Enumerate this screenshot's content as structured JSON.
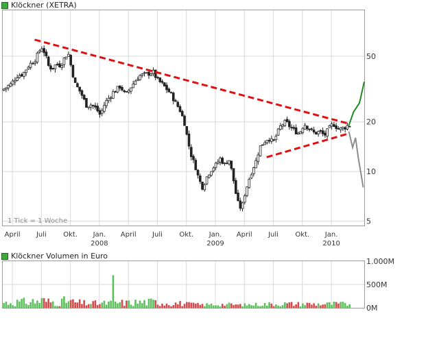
{
  "colors": {
    "up_candle": "#ffffff",
    "down_candle": "#222222",
    "trend_line": "#e01010",
    "scenario_up": "#1f8a1f",
    "scenario_down": "#8c8c8c",
    "volume_up": "#5cbf5c",
    "volume_down": "#d24a4a",
    "grid": "#d8d8d8",
    "legend_swatch": "#3fa83f"
  },
  "price_chart": {
    "legend": "Klöckner (XETRA)",
    "tick_note": "1 Tick = 1 Woche"
  },
  "volume_chart": {
    "legend": "Klöckner Volumen in Euro"
  },
  "chart_data": [
    {
      "type": "line",
      "title": "Klöckner (XETRA)",
      "scale": "log",
      "ylim": [
        4.7,
        95
      ],
      "grid": true,
      "y_ticks": [
        {
          "value": 50,
          "label": "50"
        },
        {
          "value": 20,
          "label": "20"
        },
        {
          "value": 10,
          "label": "10"
        },
        {
          "value": 5,
          "label": "5"
        }
      ],
      "x_ticks": [
        {
          "t": 0.0,
          "label": "April"
        },
        {
          "t": 3.0,
          "label": "Juli"
        },
        {
          "t": 6.0,
          "label": "Okt."
        },
        {
          "t": 9.0,
          "label": "Jan."
        },
        {
          "t": 12.0,
          "label": "April"
        },
        {
          "t": 15.0,
          "label": "Juli"
        },
        {
          "t": 18.0,
          "label": "Okt."
        },
        {
          "t": 21.0,
          "label": "Jan."
        },
        {
          "t": 24.0,
          "label": "April"
        },
        {
          "t": 27.0,
          "label": "Juli"
        },
        {
          "t": 30.0,
          "label": "Okt."
        },
        {
          "t": 33.0,
          "label": "Jan."
        }
      ],
      "year_labels": [
        {
          "t": 9.0,
          "label": "2008"
        },
        {
          "t": 21.0,
          "label": "2009"
        },
        {
          "t": 33.0,
          "label": "2010"
        }
      ],
      "price_path": [
        {
          "t": -1.0,
          "v": 31
        },
        {
          "t": 0.0,
          "v": 34
        },
        {
          "t": 0.6,
          "v": 38
        },
        {
          "t": 1.2,
          "v": 39
        },
        {
          "t": 1.8,
          "v": 44
        },
        {
          "t": 2.5,
          "v": 48
        },
        {
          "t": 3.1,
          "v": 57
        },
        {
          "t": 3.5,
          "v": 52
        },
        {
          "t": 3.8,
          "v": 44
        },
        {
          "t": 4.2,
          "v": 42
        },
        {
          "t": 4.7,
          "v": 45
        },
        {
          "t": 5.1,
          "v": 44
        },
        {
          "t": 5.6,
          "v": 50
        },
        {
          "t": 5.9,
          "v": 52
        },
        {
          "t": 6.2,
          "v": 43
        },
        {
          "t": 6.6,
          "v": 34
        },
        {
          "t": 7.2,
          "v": 30
        },
        {
          "t": 7.8,
          "v": 25
        },
        {
          "t": 8.3,
          "v": 25.5
        },
        {
          "t": 8.8,
          "v": 24
        },
        {
          "t": 9.2,
          "v": 22
        },
        {
          "t": 9.7,
          "v": 26
        },
        {
          "t": 10.5,
          "v": 30
        },
        {
          "t": 11.3,
          "v": 33
        },
        {
          "t": 11.8,
          "v": 29
        },
        {
          "t": 12.6,
          "v": 34
        },
        {
          "t": 13.2,
          "v": 38
        },
        {
          "t": 14.0,
          "v": 39
        },
        {
          "t": 14.7,
          "v": 40
        },
        {
          "t": 15.1,
          "v": 36
        },
        {
          "t": 15.6,
          "v": 34
        },
        {
          "t": 16.2,
          "v": 31
        },
        {
          "t": 16.6,
          "v": 29
        },
        {
          "t": 17.0,
          "v": 26
        },
        {
          "t": 17.4,
          "v": 24
        },
        {
          "t": 17.9,
          "v": 20
        },
        {
          "t": 18.3,
          "v": 15
        },
        {
          "t": 18.7,
          "v": 12
        },
        {
          "t": 19.0,
          "v": 11
        },
        {
          "t": 19.4,
          "v": 9
        },
        {
          "t": 19.8,
          "v": 8
        },
        {
          "t": 20.3,
          "v": 9.5
        },
        {
          "t": 20.8,
          "v": 10.5
        },
        {
          "t": 21.2,
          "v": 11
        },
        {
          "t": 21.6,
          "v": 12
        },
        {
          "t": 22.1,
          "v": 11
        },
        {
          "t": 22.5,
          "v": 12
        },
        {
          "t": 22.9,
          "v": 9.5
        },
        {
          "t": 23.3,
          "v": 7
        },
        {
          "t": 23.6,
          "v": 6
        },
        {
          "t": 23.9,
          "v": 6.2
        },
        {
          "t": 24.2,
          "v": 7.5
        },
        {
          "t": 24.6,
          "v": 9
        },
        {
          "t": 25.0,
          "v": 10.5
        },
        {
          "t": 25.3,
          "v": 11.5
        },
        {
          "t": 25.7,
          "v": 14
        },
        {
          "t": 26.1,
          "v": 15
        },
        {
          "t": 26.6,
          "v": 16
        },
        {
          "t": 27.1,
          "v": 15
        },
        {
          "t": 27.5,
          "v": 17
        },
        {
          "t": 27.9,
          "v": 19
        },
        {
          "t": 28.4,
          "v": 20
        },
        {
          "t": 28.9,
          "v": 18.5
        },
        {
          "t": 29.4,
          "v": 17.5
        },
        {
          "t": 29.8,
          "v": 17
        },
        {
          "t": 30.3,
          "v": 19.5
        },
        {
          "t": 30.9,
          "v": 18
        },
        {
          "t": 31.4,
          "v": 17
        },
        {
          "t": 31.9,
          "v": 17.5
        },
        {
          "t": 32.4,
          "v": 16.5
        },
        {
          "t": 32.8,
          "v": 18
        },
        {
          "t": 33.3,
          "v": 19.5
        },
        {
          "t": 33.9,
          "v": 18
        },
        {
          "t": 34.5,
          "v": 18.5
        },
        {
          "t": 34.8,
          "v": 19
        }
      ],
      "trend_lines": [
        {
          "from": {
            "t": 2.3,
            "v": 63
          },
          "to": {
            "t": 34.8,
            "v": 19.5
          }
        },
        {
          "from": {
            "t": 26.3,
            "v": 12.2
          },
          "to": {
            "t": 34.8,
            "v": 17
          }
        }
      ],
      "scenarios": [
        {
          "direction": "up",
          "points": [
            {
              "t": 34.8,
              "v": 19
            },
            {
              "t": 35.3,
              "v": 23
            },
            {
              "t": 35.9,
              "v": 26
            },
            {
              "t": 36.4,
              "v": 35
            }
          ]
        },
        {
          "direction": "down",
          "points": [
            {
              "t": 34.8,
              "v": 17.5
            },
            {
              "t": 35.2,
              "v": 14
            },
            {
              "t": 35.5,
              "v": 16
            },
            {
              "t": 35.8,
              "v": 12
            },
            {
              "t": 36.3,
              "v": 8
            }
          ]
        }
      ]
    },
    {
      "type": "bar",
      "title": "Klöckner Volumen in Euro",
      "ylim": [
        0,
        1000
      ],
      "unit": "M",
      "y_ticks": [
        {
          "value": 1000,
          "label": "1.000M"
        },
        {
          "value": 500,
          "label": "500M"
        },
        {
          "value": 0,
          "label": "0M"
        }
      ],
      "spikes": [
        {
          "t": 10.2,
          "v": 700
        },
        {
          "t": 5.3,
          "v": 150
        },
        {
          "t": 5.1,
          "v": 170
        },
        {
          "t": 18.7,
          "v": 110
        },
        {
          "t": 33.2,
          "v": 90
        },
        {
          "t": 2.9,
          "v": 120
        }
      ]
    }
  ]
}
